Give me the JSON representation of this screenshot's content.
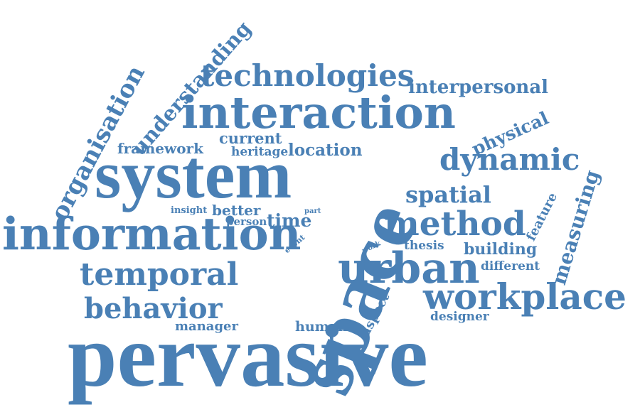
{
  "color": "#4a80b5",
  "background": "#ffffff",
  "words": {
    "pervasive": "pervasive",
    "space": "space",
    "system": "system",
    "information": "information",
    "interaction": "interaction",
    "technologies": "technologies",
    "urban": "urban",
    "workplace": "workplace",
    "method": "method",
    "temporal": "temporal",
    "behavior": "behavior",
    "dynamic": "dynamic",
    "organisation": "organisation",
    "understanding": "understanding",
    "interpersonal": "interpersonal",
    "physical": "physical",
    "spatial": "spatial",
    "measuring": "measuring",
    "framework": "framework",
    "current": "current",
    "heritage": "heritage",
    "location": "location",
    "better": "better",
    "time": "time",
    "insight": "insight",
    "person": "person",
    "part": "part",
    "event": "event",
    "work": "work",
    "thesis": "thesis",
    "building": "building",
    "different": "different",
    "feature": "feature",
    "aspect": "aspect",
    "human": "human",
    "manager": "manager",
    "designer": "designer"
  }
}
